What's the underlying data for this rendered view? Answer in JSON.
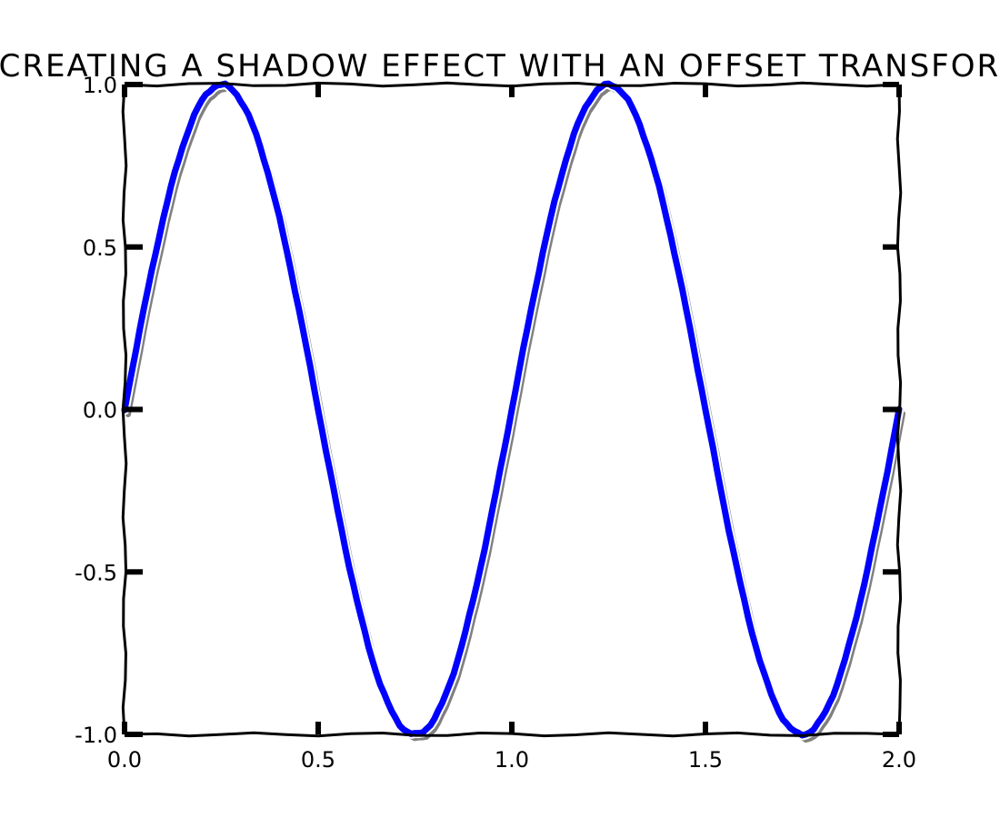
{
  "chart_data": {
    "type": "line",
    "title": "CREATING A SHADOW EFFECT WITH AN OFFSET TRANSFORM",
    "xlabel": "",
    "ylabel": "",
    "xlim": [
      0.0,
      2.0
    ],
    "ylim": [
      -1.0,
      1.0
    ],
    "x_ticks": [
      0.0,
      0.5,
      1.0,
      1.5,
      2.0
    ],
    "x_tick_labels": [
      "0.0",
      "0.5",
      "1.0",
      "1.5",
      "2.0"
    ],
    "y_ticks": [
      -1.0,
      -0.5,
      0.0,
      0.5,
      1.0
    ],
    "y_tick_labels": [
      "-1.0",
      "-0.5",
      "0.0",
      "0.5",
      "1.0"
    ],
    "grid": false,
    "function": "sin(2*pi*x)",
    "x_start": 0.0,
    "x_end": 2.0,
    "sample_count": 201,
    "series": [
      {
        "role": "line",
        "color": "#0000ff"
      },
      {
        "role": "shadow",
        "color": "#808080"
      }
    ]
  }
}
